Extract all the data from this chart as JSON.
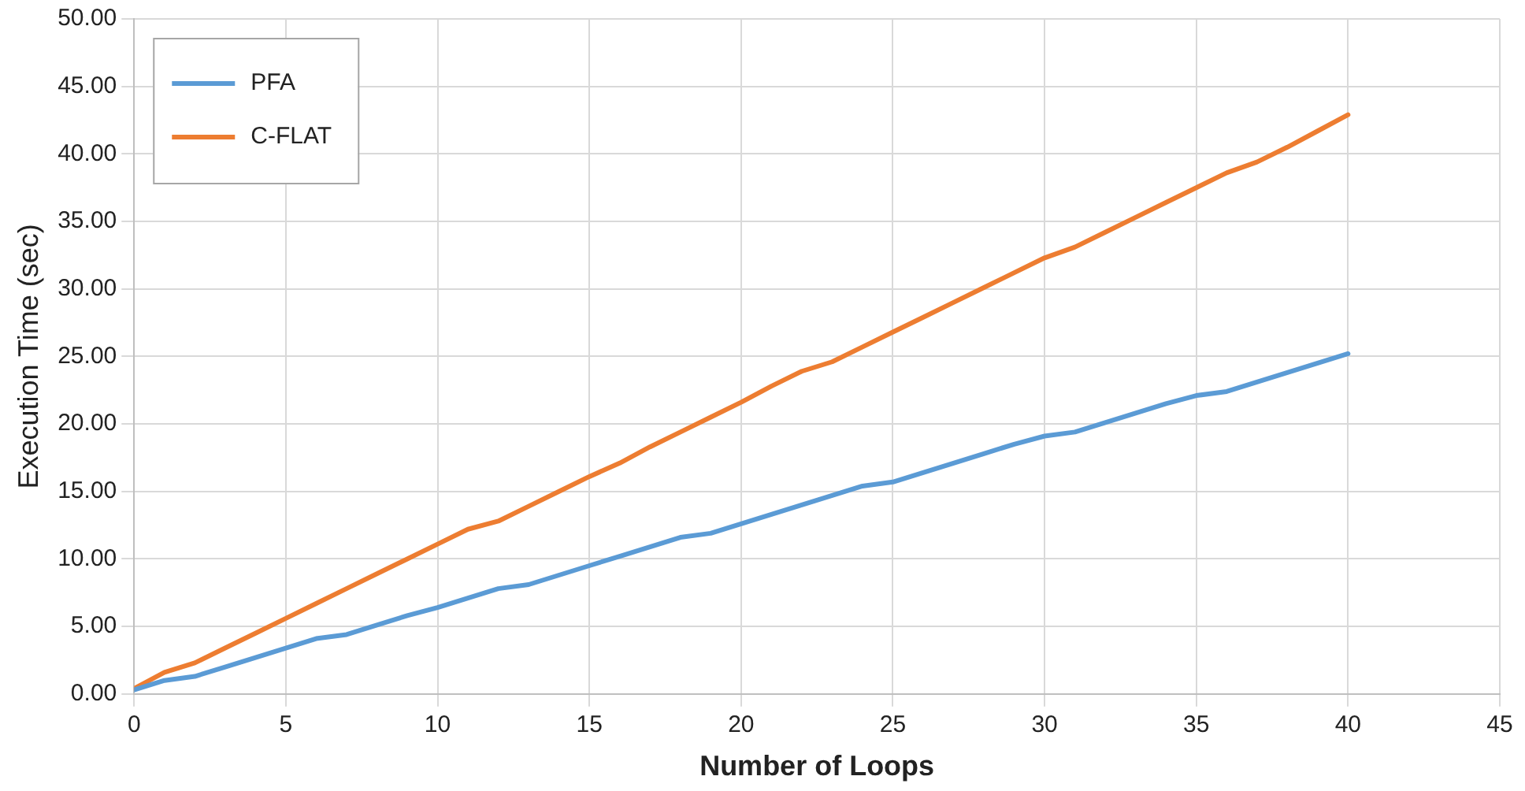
{
  "chart_data": {
    "type": "line",
    "xlabel": "Number of Loops",
    "ylabel": "Execution Time (sec)",
    "x": [
      0,
      1,
      2,
      3,
      4,
      5,
      6,
      7,
      8,
      9,
      10,
      11,
      12,
      13,
      14,
      15,
      16,
      17,
      18,
      19,
      20,
      21,
      22,
      23,
      24,
      25,
      26,
      27,
      28,
      29,
      30,
      31,
      32,
      33,
      34,
      35,
      36,
      37,
      38,
      39,
      40
    ],
    "series": [
      {
        "name": "PFA",
        "color": "#5b9bd5",
        "values": [
          0.3,
          1.0,
          1.3,
          2.0,
          2.7,
          3.4,
          4.1,
          4.4,
          5.1,
          5.8,
          6.4,
          7.1,
          7.8,
          8.1,
          8.8,
          9.5,
          10.2,
          10.9,
          11.6,
          11.9,
          12.6,
          13.3,
          14.0,
          14.7,
          15.4,
          15.7,
          16.4,
          17.1,
          17.8,
          18.5,
          19.1,
          19.4,
          20.1,
          20.8,
          21.5,
          22.1,
          22.4,
          23.1,
          23.8,
          24.5,
          25.2
        ]
      },
      {
        "name": "C-FLAT",
        "color": "#ed7d31",
        "values": [
          0.4,
          1.6,
          2.3,
          3.4,
          4.5,
          5.6,
          6.7,
          7.8,
          8.9,
          10.0,
          11.1,
          12.2,
          12.8,
          13.9,
          15.0,
          16.1,
          17.1,
          18.3,
          19.4,
          20.5,
          21.6,
          22.8,
          23.9,
          24.6,
          25.7,
          26.8,
          27.9,
          29.0,
          30.1,
          31.2,
          32.3,
          33.1,
          34.2,
          35.3,
          36.4,
          37.5,
          38.6,
          39.4,
          40.5,
          41.7,
          42.9
        ]
      }
    ],
    "xlim": [
      0,
      45
    ],
    "xticks": [
      0,
      5,
      10,
      15,
      20,
      25,
      30,
      35,
      40,
      45
    ],
    "ylim": [
      0,
      50
    ],
    "yticks": [
      {
        "value": 0,
        "label": "0.00"
      },
      {
        "value": 5,
        "label": "5.00"
      },
      {
        "value": 10,
        "label": "10.00"
      },
      {
        "value": 15,
        "label": "15.00"
      },
      {
        "value": 20,
        "label": "20.00"
      },
      {
        "value": 25,
        "label": "25.00"
      },
      {
        "value": 30,
        "label": "30.00"
      },
      {
        "value": 35,
        "label": "35.00"
      },
      {
        "value": 40,
        "label": "40.00"
      },
      {
        "value": 45,
        "label": "45.00"
      },
      {
        "value": 50,
        "label": "50.00"
      }
    ],
    "grid": true,
    "legend": "top left",
    "marker": "none",
    "line_style": "solid"
  }
}
